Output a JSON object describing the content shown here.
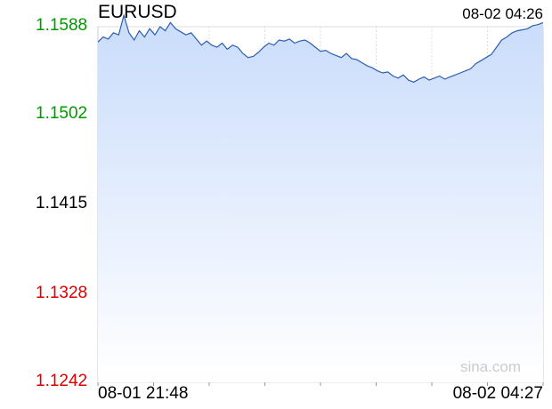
{
  "header": {
    "symbol": "EURUSD",
    "timestamp": "08-02 04:26"
  },
  "watermark": "sina.com",
  "colors": {
    "up": "#009900",
    "down": "#dd0000",
    "neutral": "#000000",
    "line": "#2c5fb0",
    "fill_top": "#c9dcfb",
    "fill_bottom": "#ffffff"
  },
  "chart_data": {
    "type": "area",
    "title": "EURUSD",
    "x_start_label": "08-01 21:48",
    "x_end_label": "08-02 04:27",
    "y_tick_labels": [
      "1.1588",
      "1.1502",
      "1.1415",
      "1.1328",
      "1.1242"
    ],
    "y_tick_values": [
      1.1588,
      1.1502,
      1.1415,
      1.1328,
      1.1242
    ],
    "reference_price": 1.1415,
    "ylim": [
      1.1242,
      1.1588
    ],
    "x_label_count": 9,
    "grid": true,
    "values": [
      1.1573,
      1.1578,
      1.1576,
      1.1582,
      1.158,
      1.1599,
      1.1582,
      1.1575,
      1.1584,
      1.1578,
      1.1586,
      1.158,
      1.1588,
      1.1584,
      1.1592,
      1.1586,
      1.1583,
      1.158,
      1.1582,
      1.1576,
      1.157,
      1.1574,
      1.157,
      1.1568,
      1.1572,
      1.1566,
      1.157,
      1.1568,
      1.1562,
      1.1558,
      1.1559,
      1.1563,
      1.1568,
      1.1572,
      1.157,
      1.1575,
      1.1574,
      1.1576,
      1.1572,
      1.1574,
      1.1575,
      1.1572,
      1.1568,
      1.1564,
      1.1565,
      1.1562,
      1.156,
      1.1558,
      1.1562,
      1.1557,
      1.1556,
      1.1553,
      1.155,
      1.1548,
      1.1545,
      1.1543,
      1.1544,
      1.154,
      1.1538,
      1.1541,
      1.1536,
      1.1534,
      1.1537,
      1.1539,
      1.1536,
      1.1538,
      1.154,
      1.1537,
      1.1539,
      1.1541,
      1.1543,
      1.1545,
      1.1547,
      1.1552,
      1.1555,
      1.1558,
      1.1561,
      1.1568,
      1.1575,
      1.1578,
      1.1582,
      1.1584,
      1.1585,
      1.1586,
      1.1589,
      1.159,
      1.1592
    ]
  }
}
